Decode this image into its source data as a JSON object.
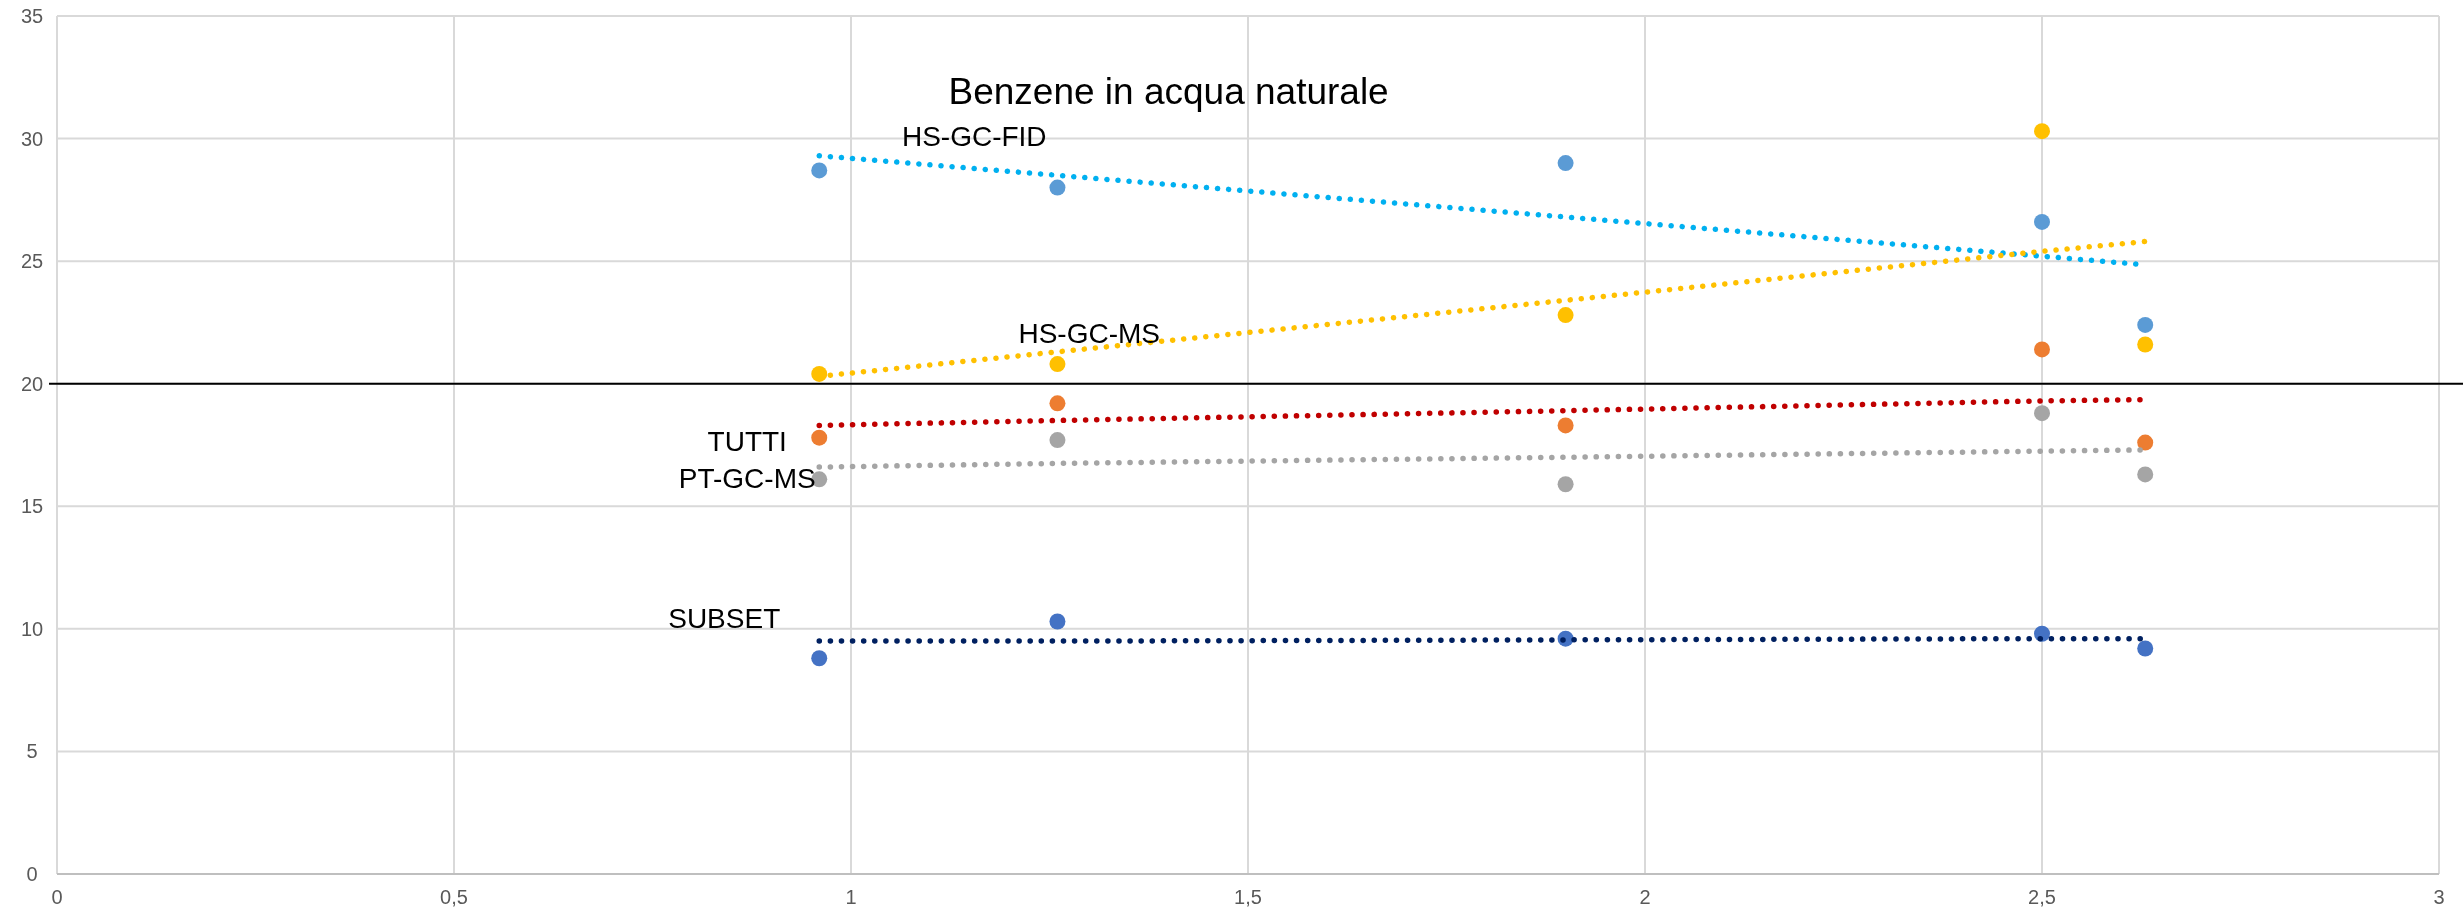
{
  "chart_data": {
    "type": "scatter",
    "title": "Benzene in acqua naturale",
    "xlim": [
      0,
      3
    ],
    "ylim": [
      0,
      35
    ],
    "xticks": [
      0,
      {
        "value": 0.5,
        "label": "0,5"
      },
      1,
      {
        "value": 1.5,
        "label": "1,5"
      },
      2,
      {
        "value": 2.5,
        "label": "2,5"
      },
      3
    ],
    "yticks": [
      0,
      5,
      10,
      15,
      20,
      25,
      30,
      35
    ],
    "grid": true,
    "x": [
      0.96,
      1.26,
      1.9,
      2.5,
      2.63
    ],
    "series": [
      {
        "name": "HS-GC-FID",
        "marker": "circle",
        "color": "#5b9bd5",
        "values": [
          28.7,
          28.0,
          29.0,
          26.6,
          22.4
        ]
      },
      {
        "name": "HS-GC-MS",
        "marker": "circle",
        "color": "#ffc000",
        "values": [
          20.4,
          20.8,
          22.8,
          30.3,
          21.6
        ]
      },
      {
        "name": "TUTTI",
        "marker": "circle",
        "color": "#ed7d31",
        "values": [
          17.8,
          19.2,
          18.3,
          21.4,
          17.6
        ]
      },
      {
        "name": "PT-GC-MS",
        "marker": "circle",
        "color": "#a5a5a5",
        "values": [
          16.1,
          17.7,
          15.9,
          18.8,
          16.3
        ]
      },
      {
        "name": "SUBSET",
        "marker": "circle",
        "color": "#4472c4",
        "values": [
          8.8,
          10.3,
          9.6,
          9.8,
          9.2
        ]
      },
      {
        "type": "line",
        "marker": "none",
        "color": "#00b0f0",
        "line_style": "dotted",
        "values": [
          29.3,
          28.5,
          26.8,
          25.2,
          24.85
        ]
      },
      {
        "type": "line",
        "marker": "none",
        "color": "#ffc000",
        "line_style": "dotted",
        "values": [
          20.3,
          21.3,
          23.4,
          25.4,
          25.8
        ]
      },
      {
        "type": "line",
        "marker": "none",
        "color": "#c00000",
        "line_style": "dotted",
        "values": [
          18.3,
          18.5,
          18.9,
          19.3,
          19.35
        ]
      },
      {
        "type": "line",
        "marker": "none",
        "color": "#a5a5a5",
        "line_style": "dotted",
        "values": [
          16.6,
          16.75,
          17.0,
          17.25,
          17.3
        ]
      },
      {
        "type": "line",
        "marker": "none",
        "color": "#002060",
        "line_style": "dotted",
        "values": [
          9.5,
          9.5,
          9.55,
          9.6,
          9.6
        ]
      }
    ],
    "ref_lines": [
      {
        "axis": "y",
        "value": 20,
        "color": "#000000"
      }
    ]
  }
}
